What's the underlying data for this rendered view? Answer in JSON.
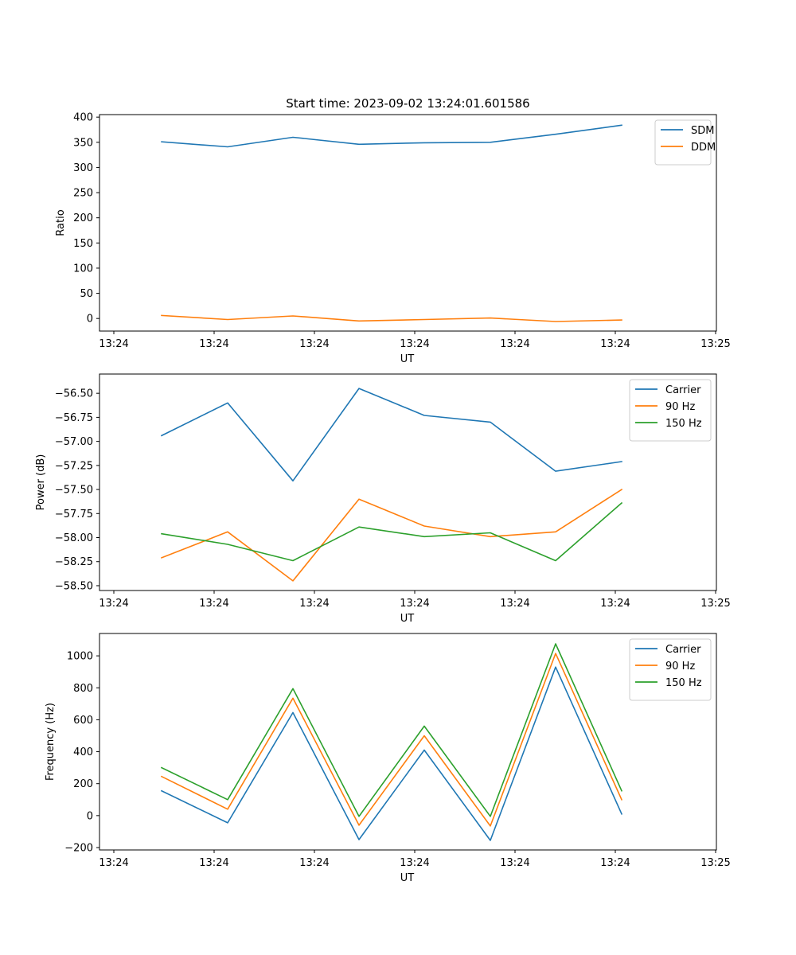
{
  "chart_data": [
    {
      "type": "line",
      "title": "Start time: 2023-09-02 13:24:01.601586",
      "xlabel": "UT",
      "ylabel": "Ratio",
      "xticks": [
        "13:24",
        "13:24",
        "13:24",
        "13:24",
        "13:24",
        "13:24",
        "13:25"
      ],
      "ylim": [
        -25,
        405
      ],
      "yticks": [
        0,
        50,
        100,
        150,
        200,
        250,
        300,
        350,
        400
      ],
      "yticklabels": [
        "0",
        "50",
        "100",
        "150",
        "200",
        "250",
        "300",
        "350",
        "400"
      ],
      "legend_position": "top-right",
      "series": [
        {
          "name": "SDM",
          "color": "#1f77b4",
          "values": [
            351,
            341,
            360,
            346,
            349,
            350,
            366,
            384
          ]
        },
        {
          "name": "DDM",
          "color": "#ff7f0e",
          "values": [
            6,
            -2,
            5,
            -5,
            -2,
            1,
            -6,
            -3
          ]
        }
      ]
    },
    {
      "type": "line",
      "title": "",
      "xlabel": "UT",
      "ylabel": "Power (dB)",
      "xticks": [
        "13:24",
        "13:24",
        "13:24",
        "13:24",
        "13:24",
        "13:24",
        "13:25"
      ],
      "ylim": [
        -58.55,
        -56.3
      ],
      "yticks": [
        -58.5,
        -58.25,
        -58.0,
        -57.75,
        -57.5,
        -57.25,
        -57.0,
        -56.75,
        -56.5
      ],
      "yticklabels": [
        "−58.50",
        "−58.25",
        "−58.00",
        "−57.75",
        "−57.50",
        "−57.25",
        "−57.00",
        "−56.75",
        "−56.50"
      ],
      "legend_position": "top-right",
      "series": [
        {
          "name": "Carrier",
          "color": "#1f77b4",
          "values": [
            -56.94,
            -56.6,
            -57.41,
            -56.45,
            -56.73,
            -56.8,
            -57.31,
            -57.21
          ]
        },
        {
          "name": "90 Hz",
          "color": "#ff7f0e",
          "values": [
            -58.21,
            -57.94,
            -58.45,
            -57.6,
            -57.88,
            -57.99,
            -57.94,
            -57.5
          ]
        },
        {
          "name": "150 Hz",
          "color": "#2ca02c",
          "values": [
            -57.96,
            -58.07,
            -58.24,
            -57.89,
            -57.99,
            -57.95,
            -58.24,
            -57.64
          ]
        }
      ]
    },
    {
      "type": "line",
      "title": "",
      "xlabel": "UT",
      "ylabel": "Frequency (Hz)",
      "xticks": [
        "13:24",
        "13:24",
        "13:24",
        "13:24",
        "13:24",
        "13:24",
        "13:25"
      ],
      "ylim": [
        -215,
        1140
      ],
      "yticks": [
        -200,
        0,
        200,
        400,
        600,
        800,
        1000
      ],
      "yticklabels": [
        "−200",
        "0",
        "200",
        "400",
        "600",
        "800",
        "1000"
      ],
      "legend_position": "top-right",
      "series": [
        {
          "name": "Carrier",
          "color": "#1f77b4",
          "values": [
            155,
            -45,
            645,
            -150,
            410,
            -155,
            930,
            10
          ]
        },
        {
          "name": "90 Hz",
          "color": "#ff7f0e",
          "values": [
            245,
            40,
            735,
            -60,
            500,
            -65,
            1015,
            100
          ]
        },
        {
          "name": "150 Hz",
          "color": "#2ca02c",
          "values": [
            300,
            100,
            795,
            -5,
            560,
            -5,
            1075,
            155
          ]
        }
      ]
    }
  ]
}
